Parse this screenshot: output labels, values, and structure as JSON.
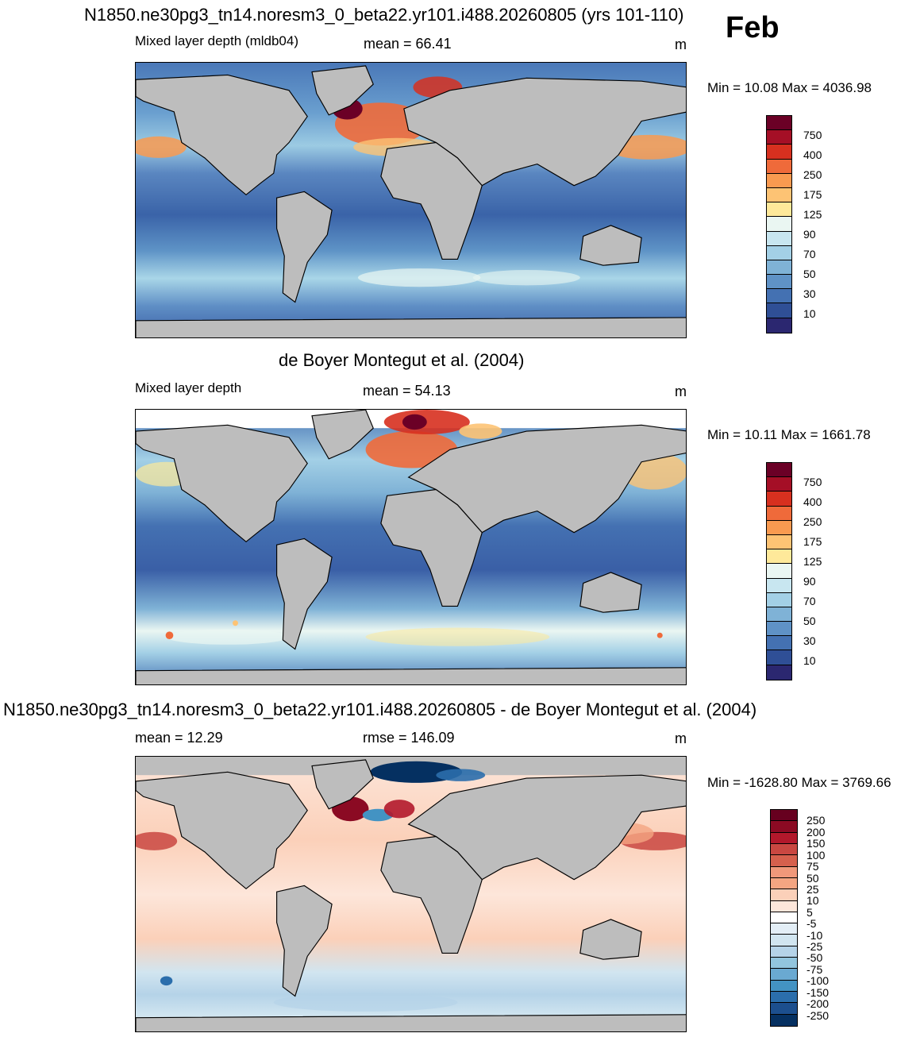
{
  "page_label": "Feb",
  "panels": [
    {
      "title": "N1850.ne30pg3_tn14.noresm3_0_beta22.yr101.i488.20260805 (yrs 101-110)",
      "left_label": "Mixed layer depth (mldb04)",
      "center_label": "mean =  66.41",
      "units": "m",
      "minmax": "Min =  10.08 Max = 4036.98",
      "colorbar_labels": [
        "750",
        "400",
        "250",
        "175",
        "125",
        "90",
        "70",
        "50",
        "30",
        "10"
      ]
    },
    {
      "title": "de Boyer Montegut et al. (2004)",
      "left_label": "Mixed layer depth",
      "center_label": "mean =  54.13",
      "units": "m",
      "minmax": "Min =  10.11 Max = 1661.78",
      "colorbar_labels": [
        "750",
        "400",
        "250",
        "175",
        "125",
        "90",
        "70",
        "50",
        "30",
        "10"
      ]
    },
    {
      "title": "N1850.ne30pg3_tn14.noresm3_0_beta22.yr101.i488.20260805 - de Boyer Montegut et al. (2004)",
      "left_label": "mean =  12.29",
      "center_label": "rmse = 146.09",
      "units": "m",
      "minmax": "Min = -1628.80 Max = 3769.66",
      "colorbar_labels": [
        "250",
        "200",
        "150",
        "100",
        "75",
        "50",
        "25",
        "10",
        "5",
        "-5",
        "-10",
        "-25",
        "-50",
        "-75",
        "-100",
        "-150",
        "-200",
        "-250"
      ]
    }
  ],
  "colors": {
    "land": "#bdbdbd",
    "seq_scale": [
      "#6b0026",
      "#a50f26",
      "#d7301f",
      "#ef6a3a",
      "#f99a50",
      "#fdc374",
      "#fee99a",
      "#eaf6f2",
      "#c8e6f0",
      "#a3d0e6",
      "#7fb2d6",
      "#5f92c6",
      "#4471b2",
      "#2f4f96",
      "#2b2770"
    ],
    "div_scale": [
      "#67001f",
      "#8b0a23",
      "#b2182b",
      "#c94741",
      "#d6604d",
      "#f0987a",
      "#f4a582",
      "#fbd0b9",
      "#fde6da",
      "#ffffff",
      "#e3eef6",
      "#d1e5f0",
      "#b5d3e8",
      "#92c5de",
      "#6aa9d1",
      "#4393c3",
      "#2b6eac",
      "#1c4f8e",
      "#053061"
    ]
  }
}
